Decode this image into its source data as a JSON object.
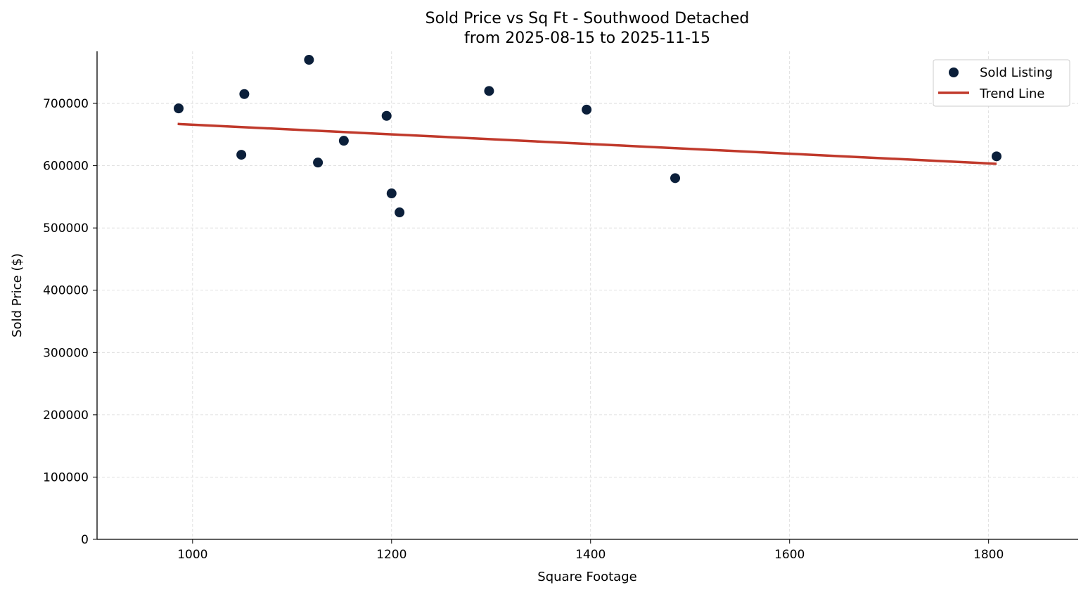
{
  "chart_data": {
    "type": "scatter",
    "title": "Sold Price vs Sq Ft - Southwood Detached",
    "subtitle": "from 2025-08-15 to 2025-11-15",
    "xlabel": "Square Footage",
    "ylabel": "Sold Price ($)",
    "xlim": [
      904,
      1890
    ],
    "ylim": [
      0,
      783600
    ],
    "xticks": [
      1000,
      1200,
      1400,
      1600,
      1800
    ],
    "yticks": [
      0,
      100000,
      200000,
      300000,
      400000,
      500000,
      600000,
      700000
    ],
    "grid": true,
    "legend_position": "top-right",
    "colors": {
      "points": "#0b1f3a",
      "trend": "#c0392b"
    },
    "series": [
      {
        "name": "Sold Listing",
        "type": "scatter",
        "points": [
          [
            986,
            692000
          ],
          [
            1052,
            715000
          ],
          [
            1049,
            617500
          ],
          [
            1117,
            770000
          ],
          [
            1126,
            605000
          ],
          [
            1152,
            640000
          ],
          [
            1195,
            680000
          ],
          [
            1200,
            555500
          ],
          [
            1208,
            525000
          ],
          [
            1298,
            720000
          ],
          [
            1396,
            690000
          ],
          [
            1485,
            580000
          ],
          [
            1808,
            615000
          ]
        ]
      },
      {
        "name": "Trend Line",
        "type": "line",
        "points": [
          [
            985,
            667000
          ],
          [
            1808,
            603000
          ]
        ]
      }
    ]
  }
}
